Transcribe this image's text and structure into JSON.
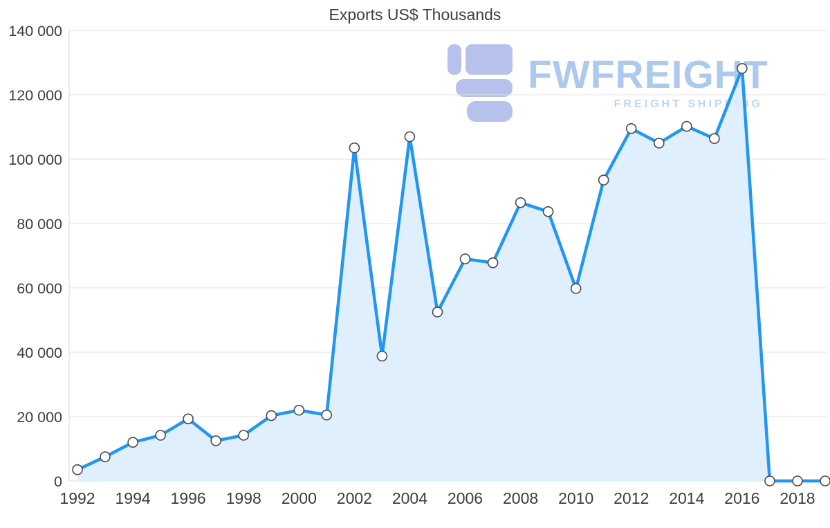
{
  "chart_data": {
    "type": "area",
    "title": "Exports US$ Thousands",
    "x": [
      1992,
      1993,
      1994,
      1995,
      1996,
      1997,
      1998,
      1999,
      2000,
      2001,
      2002,
      2003,
      2004,
      2005,
      2006,
      2007,
      2008,
      2009,
      2010,
      2011,
      2012,
      2013,
      2014,
      2015,
      2016,
      2017,
      2018,
      2019
    ],
    "values": [
      3500,
      7500,
      12000,
      14200,
      19300,
      12500,
      14200,
      20300,
      22000,
      20500,
      103500,
      38800,
      107000,
      52500,
      69000,
      67800,
      86500,
      83700,
      59800,
      93500,
      109500,
      105000,
      110200,
      106400,
      128200,
      0,
      0,
      0
    ],
    "xlabel": "",
    "ylabel": "",
    "ylim": [
      0,
      140000
    ],
    "ytick_step": 20000,
    "ytick_labels": [
      "0",
      "20 000",
      "40 000",
      "60 000",
      "80 000",
      "100 000",
      "120 000",
      "140 000"
    ],
    "xticks": [
      1992,
      1994,
      1996,
      1998,
      2000,
      2002,
      2004,
      2006,
      2008,
      2010,
      2012,
      2014,
      2016,
      2018
    ],
    "grid": true,
    "legend": "none",
    "colors": {
      "line": "#2196f3",
      "fill": "#daecfc",
      "marker_fill": "#ffffff",
      "marker_stroke": "#4a4a4a",
      "grid": "#e0e0e0",
      "axis": "#d6d6d6",
      "text": "#3d3d3d"
    }
  },
  "watermark": {
    "brand": "FWFREIGHT",
    "tagline": "FREIGHT SHIPPING",
    "logo_icon": "fwfreight-logo-icon",
    "brand_color": "#a2c2ec",
    "tagline_color": "#b7d2f2",
    "logo_color": "#adbaea"
  }
}
